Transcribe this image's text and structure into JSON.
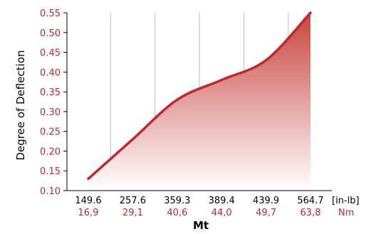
{
  "chart_data": {
    "type": "area",
    "xlabel": "Mt",
    "ylabel": "Degree of Deflection",
    "unit_primary": "[in-lb]",
    "unit_secondary": "Nm",
    "categories": [
      "149.6",
      "257.6",
      "359.3",
      "389.4",
      "439.9",
      "564.7"
    ],
    "categories_secondary": [
      "16,9",
      "29,1",
      "40,6",
      "44,0",
      "49,7",
      "63,8"
    ],
    "values": [
      0.13,
      0.23,
      0.33,
      0.38,
      0.43,
      0.55
    ],
    "ylim": [
      0.1,
      0.55
    ],
    "yticks": [
      "0.10",
      "0.15",
      "0.20",
      "0.25",
      "0.30",
      "0.35",
      "0.40",
      "0.45",
      "0.50",
      "0.55"
    ],
    "grid": "vertical",
    "colors": {
      "line": "#c0272d",
      "fill_top": "#c8443f",
      "fill_bottom": "#ffffff",
      "tick_red": "#c0272d",
      "axis": "#000000",
      "grid": "#bdbdbd"
    }
  }
}
